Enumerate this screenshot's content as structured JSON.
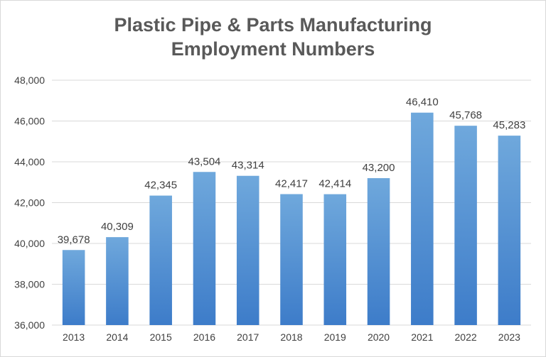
{
  "chart_data": {
    "type": "bar",
    "title_lines": [
      "Plastic Pipe & Parts Manufacturing",
      "Employment Numbers"
    ],
    "categories": [
      "2013",
      "2014",
      "2015",
      "2016",
      "2017",
      "2018",
      "2019",
      "2020",
      "2021",
      "2022",
      "2023"
    ],
    "values": [
      39678,
      40309,
      42345,
      43504,
      43314,
      42417,
      42414,
      43200,
      46410,
      45768,
      45283
    ],
    "value_labels": [
      "39,678",
      "40,309",
      "42,345",
      "43,504",
      "43,314",
      "42,417",
      "42,414",
      "43,200",
      "46,410",
      "45,768",
      "45,283"
    ],
    "ylim": [
      36000,
      48000
    ],
    "yticks": [
      36000,
      38000,
      40000,
      42000,
      44000,
      46000,
      48000
    ],
    "ytick_labels": [
      "36,000",
      "38,000",
      "40,000",
      "42,000",
      "44,000",
      "46,000",
      "48,000"
    ],
    "grid": true,
    "legend": "none",
    "colors": {
      "bar_top": "#6fa8dc",
      "bar_bottom": "#3d7cc9",
      "grid": "#d9d9d9",
      "text": "#595959"
    }
  }
}
